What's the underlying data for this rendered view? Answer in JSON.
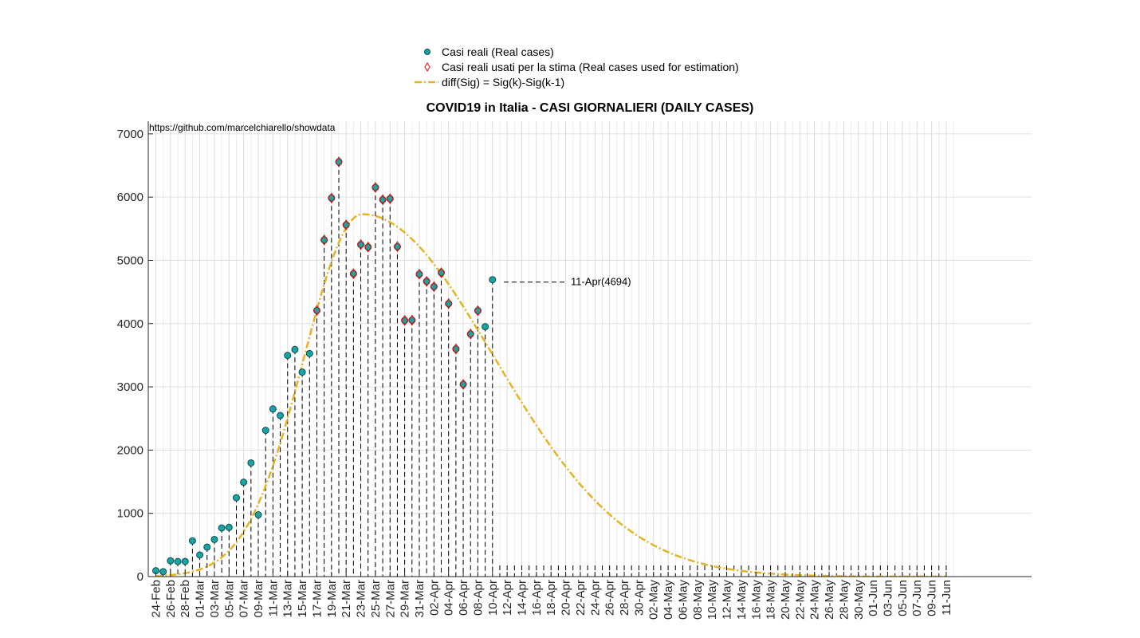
{
  "chart_data": {
    "type": "scatter",
    "title": "COVID19 in Italia - CASI GIORNALIERI (DAILY CASES)",
    "source_text": "https://github.com/marcelchiarello/showdata",
    "xlabel": "",
    "ylabel": "",
    "ylim": [
      0,
      7200
    ],
    "y_ticks": [
      0,
      1000,
      2000,
      3000,
      4000,
      5000,
      6000,
      7000
    ],
    "x_tick_labels": [
      "24-Feb",
      "26-Feb",
      "28-Feb",
      "01-Mar",
      "03-Mar",
      "05-Mar",
      "07-Mar",
      "09-Mar",
      "11-Mar",
      "13-Mar",
      "15-Mar",
      "17-Mar",
      "19-Mar",
      "21-Mar",
      "23-Mar",
      "25-Mar",
      "27-Mar",
      "29-Mar",
      "31-Mar",
      "02-Apr",
      "04-Apr",
      "06-Apr",
      "08-Apr",
      "10-Apr",
      "12-Apr",
      "14-Apr",
      "16-Apr",
      "18-Apr",
      "20-Apr",
      "22-Apr",
      "24-Apr",
      "26-Apr",
      "28-Apr",
      "30-Apr",
      "02-May",
      "04-May",
      "06-May",
      "08-May",
      "10-May",
      "12-May",
      "14-May",
      "16-May",
      "18-May",
      "20-May",
      "22-May",
      "24-May",
      "26-May",
      "28-May",
      "30-May",
      "01-Jun",
      "03-Jun",
      "05-Jun",
      "07-Jun",
      "09-Jun",
      "11-Jun"
    ],
    "grid": true,
    "legend_position": "top-center",
    "colors": {
      "real": "#1aa3a3",
      "real_edge": "#0c4f4f",
      "estimation": "#ff0000",
      "fit": "#e6b422",
      "stem": "#000000"
    },
    "series": [
      {
        "name": "Casi reali (Real cases)",
        "marker": "circle",
        "values": [
          93,
          78,
          250,
          238,
          240,
          566,
          342,
          466,
          587,
          769,
          778,
          1247,
          1492,
          1797,
          977,
          2313,
          2651,
          2547,
          3497,
          3590,
          3233,
          3526,
          4207,
          5322,
          5986,
          6557,
          5560,
          4789,
          5249,
          5210,
          6153,
          5959,
          5974,
          5217,
          4050,
          4053,
          4782,
          4668,
          4585,
          4805,
          4316,
          3599,
          3039,
          3836,
          4204,
          3951,
          4694
        ]
      },
      {
        "name": "Casi reali usati per la stima (Real cases used for estimation)",
        "marker": "diamond",
        "start_index": 22,
        "values": [
          4207,
          5322,
          5986,
          6557,
          5560,
          4789,
          5249,
          5210,
          6153,
          5959,
          5974,
          5217,
          4050,
          4053,
          4782,
          4668,
          4585,
          4805,
          4316,
          3599,
          3039,
          3836,
          4204
        ]
      },
      {
        "name": "diff(Sig) = Sig(k)-Sig(k-1)",
        "marker": "dash-dot",
        "peak_day_index": 28.2,
        "peak_value": 5730,
        "rise_scale": 8.5,
        "fall_scale": 18.0,
        "end_day_index": 108
      }
    ],
    "annotation": {
      "text": "11-Apr(4694)",
      "day_index": 47,
      "value": 4694
    },
    "stem_end_day_index": 108
  }
}
